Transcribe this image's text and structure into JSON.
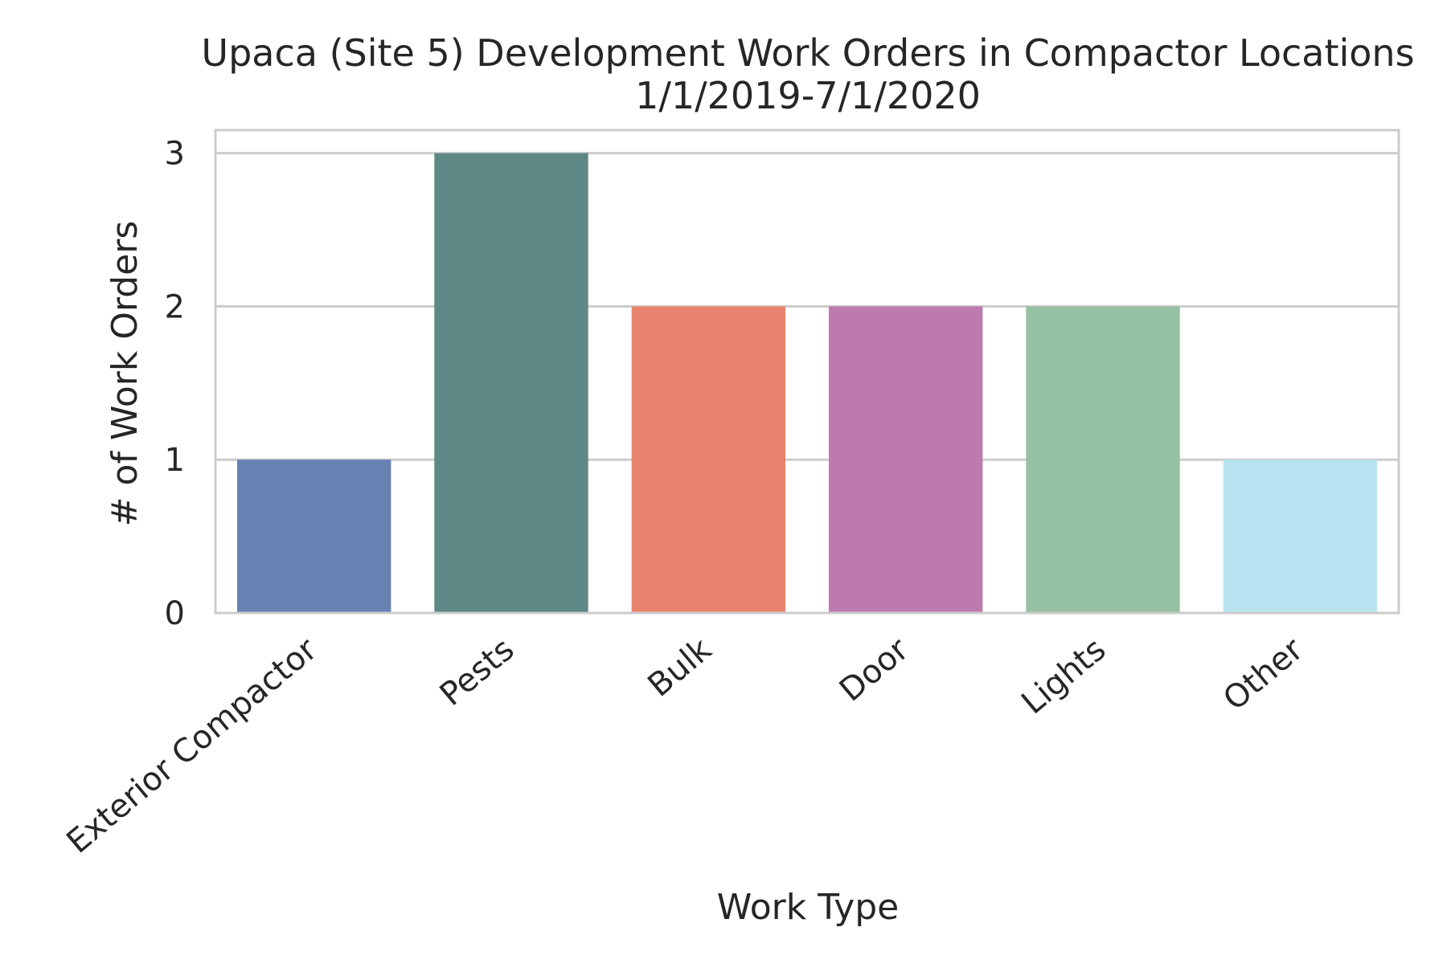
{
  "chart_data": {
    "type": "bar",
    "title": "Upaca (Site 5) Development Work Orders in Compactor Locations",
    "subtitle": "1/1/2019-7/1/2020",
    "xlabel": "Work Type",
    "ylabel": "# of Work Orders",
    "categories": [
      "Exterior Compactor",
      "Pests",
      "Bulk",
      "Door",
      "Lights",
      "Other"
    ],
    "values": [
      1,
      3,
      2,
      2,
      2,
      1
    ],
    "colors": [
      "#6882b3",
      "#5d8886",
      "#e8836d",
      "#bd7aaf",
      "#96c0a2",
      "#b7e4f0"
    ],
    "ylim": [
      0,
      3.15
    ],
    "yticks": [
      0,
      1,
      2,
      3
    ],
    "grid": true,
    "legend": "none"
  }
}
